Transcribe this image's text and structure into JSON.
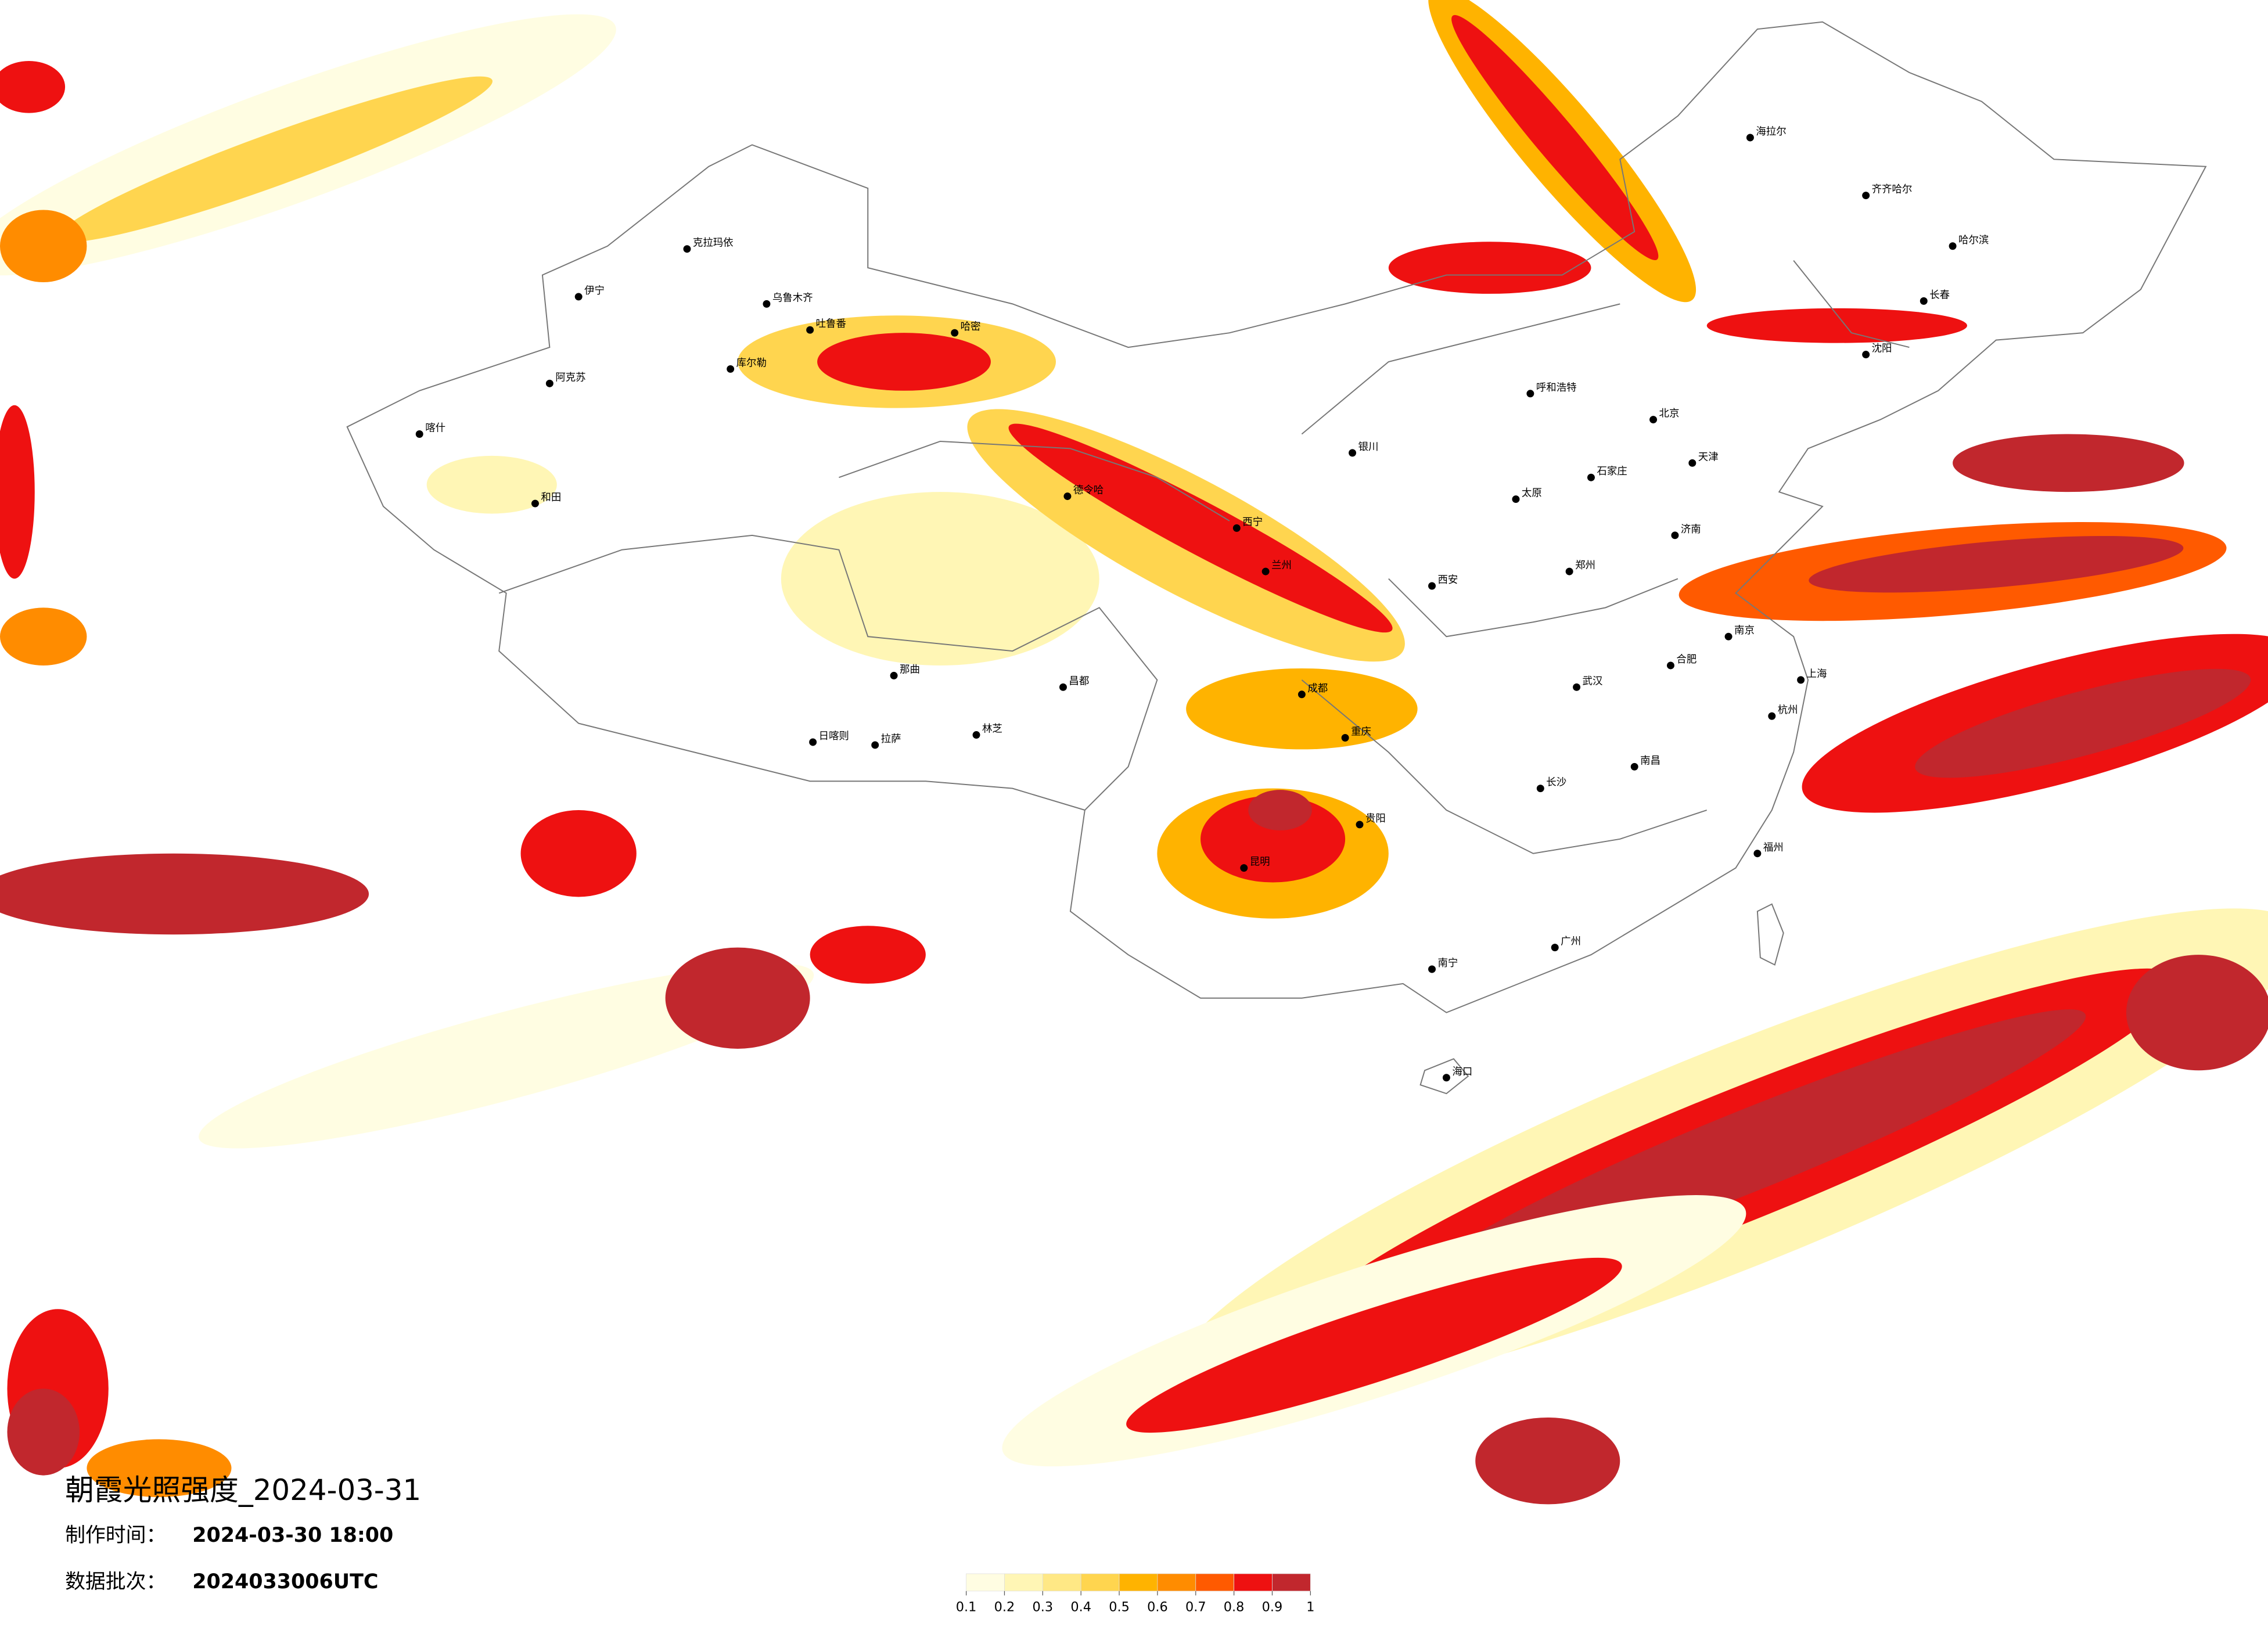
{
  "title": "朝霞光照强度_2024-03-31",
  "made_label": "制作时间：",
  "made_time": "2024-03-30 18:00",
  "batch_label": "数据批次：",
  "batch": "2024033006UTC",
  "legend": {
    "ticks": [
      0.1,
      0.2,
      0.3,
      0.4,
      0.5,
      0.6,
      0.7,
      0.8,
      0.9,
      1
    ],
    "colors": [
      "#fffde2",
      "#fff6b5",
      "#ffe885",
      "#ffd54f",
      "#ffb300",
      "#ff8c00",
      "#ff5a00",
      "#ee1111",
      "#c1272d"
    ]
  },
  "cities": [
    {
      "name": "伊宁"
    },
    {
      "name": "克拉玛依"
    },
    {
      "name": "乌鲁木齐"
    },
    {
      "name": "阿克苏"
    },
    {
      "name": "喀什"
    },
    {
      "name": "和田"
    },
    {
      "name": "库尔勒"
    },
    {
      "name": "吐鲁番"
    },
    {
      "name": "哈密"
    },
    {
      "name": "德令哈"
    },
    {
      "name": "日喀则"
    },
    {
      "name": "拉萨"
    },
    {
      "name": "那曲"
    },
    {
      "name": "林芝"
    },
    {
      "name": "昌都"
    },
    {
      "name": "西宁"
    },
    {
      "name": "兰州"
    },
    {
      "name": "银川"
    },
    {
      "name": "呼和浩特"
    },
    {
      "name": "北京"
    },
    {
      "name": "天津"
    },
    {
      "name": "石家庄"
    },
    {
      "name": "太原"
    },
    {
      "name": "济南"
    },
    {
      "name": "郑州"
    },
    {
      "name": "西安"
    },
    {
      "name": "成都"
    },
    {
      "name": "重庆"
    },
    {
      "name": "武汉"
    },
    {
      "name": "长沙"
    },
    {
      "name": "南昌"
    },
    {
      "name": "合肥"
    },
    {
      "name": "南京"
    },
    {
      "name": "上海"
    },
    {
      "name": "杭州"
    },
    {
      "name": "福州"
    },
    {
      "name": "广州"
    },
    {
      "name": "南宁"
    },
    {
      "name": "昆明"
    },
    {
      "name": "贵阳"
    },
    {
      "name": "哈尔滨"
    },
    {
      "name": "长春"
    },
    {
      "name": "沈阳"
    },
    {
      "name": "海拉尔"
    },
    {
      "name": "齐齐哈尔"
    },
    {
      "name": "海口"
    }
  ]
}
